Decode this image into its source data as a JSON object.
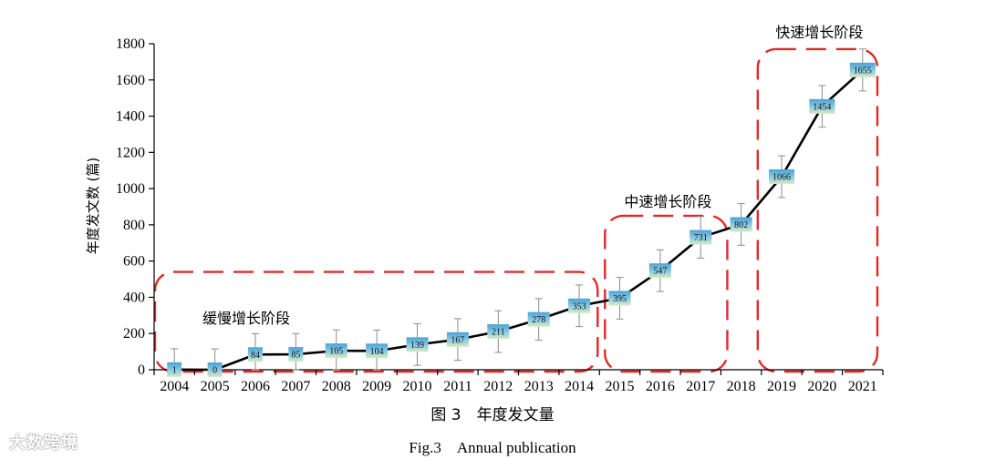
{
  "chart_data": {
    "type": "line",
    "ylabel": "年度发文数 (篇)",
    "xlabel": "",
    "ylim": [
      0,
      1800
    ],
    "yticks": [
      0,
      200,
      400,
      600,
      800,
      1000,
      1200,
      1400,
      1600,
      1800
    ],
    "categories": [
      "2004",
      "2005",
      "2006",
      "2007",
      "2008",
      "2009",
      "2010",
      "2011",
      "2012",
      "2013",
      "2014",
      "2015",
      "2016",
      "2017",
      "2018",
      "2019",
      "2020",
      "2021"
    ],
    "series": [
      {
        "values": [
          1,
          0,
          84,
          85,
          105,
          104,
          139,
          167,
          211,
          278,
          353,
          395,
          547,
          731,
          802,
          1066,
          1454,
          1655
        ]
      }
    ],
    "phases": [
      {
        "label": "缓慢增长阶段",
        "from": "2004",
        "to": "2014"
      },
      {
        "label": "中速增长阶段",
        "from": "2015",
        "to": "2017"
      },
      {
        "label": "快速增长阶段",
        "from": "2019",
        "to": "2021"
      }
    ],
    "grid": false,
    "colors": {
      "line": "#000000",
      "label_box_top": "#5aaed8",
      "label_box_bottom": "#c9e6b0",
      "phase_box": "#e02a2a"
    }
  },
  "caption": {
    "cn": "图 3　年度发文量",
    "en": "Fig.3　Annual publication"
  },
  "watermark": "大数跨境"
}
